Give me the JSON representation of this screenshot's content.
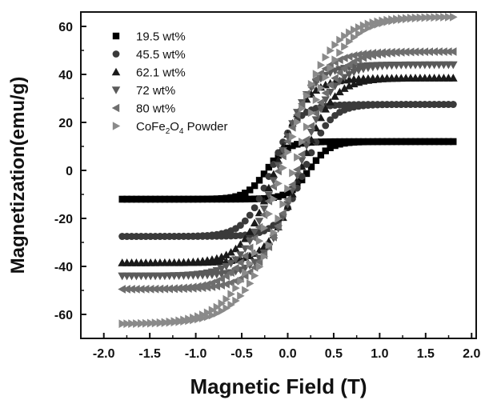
{
  "chart_data": {
    "type": "scatter",
    "title": "",
    "xlabel": "Magnetic Field (T)",
    "ylabel": "Magnetization(emu/g)",
    "xlim": [
      -2.25,
      2.05
    ],
    "ylim": [
      -70,
      66
    ],
    "xticks": [
      -2.0,
      -1.5,
      -1.0,
      -0.5,
      0.0,
      0.5,
      1.0,
      1.5,
      2.0
    ],
    "yticks": [
      -60,
      -40,
      -20,
      0,
      20,
      40,
      60
    ],
    "xtick_labels": [
      "-2.0",
      "-1.5",
      "-1.0",
      "-0.5",
      "0.0",
      "0.5",
      "1.0",
      "1.5",
      "2.0"
    ],
    "ytick_labels": [
      "-60",
      "-40",
      "-20",
      "0",
      "20",
      "40",
      "60"
    ],
    "x_range": [
      -1.8,
      1.8
    ],
    "grid": false,
    "legend_position": "top-left",
    "series": [
      {
        "name": "19.5 wt%",
        "marker": "square",
        "color": "#000000",
        "saturation": 12,
        "coercivity": 0.23,
        "width": 0.22
      },
      {
        "name": "45.5 wt%",
        "marker": "circle",
        "color": "#3a3a3a",
        "saturation": 27.5,
        "coercivity": 0.18,
        "width": 0.28
      },
      {
        "name": "62.1 wt%",
        "marker": "triangle-up",
        "color": "#1a1a1a",
        "saturation": 38.5,
        "coercivity": 0.14,
        "width": 0.34
      },
      {
        "name": "72 wt%",
        "marker": "triangle-down",
        "color": "#5a5a5a",
        "saturation": 44,
        "coercivity": 0.12,
        "width": 0.36
      },
      {
        "name": "80 wt%",
        "marker": "triangle-left",
        "color": "#6e6e6e",
        "saturation": 49.5,
        "coercivity": 0.1,
        "width": 0.4
      },
      {
        "name": "CoFe2O4 Powder",
        "label_main": "CoFe",
        "label_sub1": "2",
        "label_mid": "O",
        "label_sub2": "4",
        "label_end": " Powder",
        "marker": "triangle-right",
        "color": "#8a8a8a",
        "saturation": 64,
        "coercivity": 0.06,
        "width": 0.5
      }
    ]
  }
}
